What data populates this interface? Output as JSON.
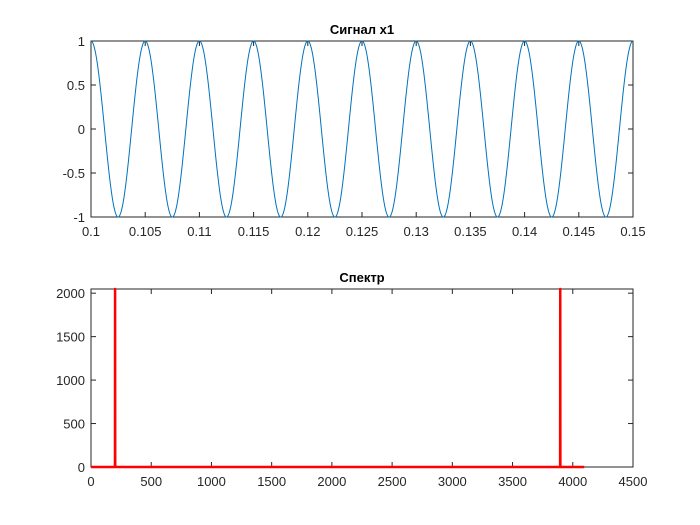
{
  "chart_data": [
    {
      "type": "line",
      "title": "Сигнал x1",
      "xlabel": "",
      "ylabel": "",
      "xlim": [
        0.1,
        0.15
      ],
      "ylim": [
        -1,
        1
      ],
      "xticks": [
        0.1,
        0.105,
        0.11,
        0.115,
        0.12,
        0.125,
        0.13,
        0.135,
        0.14,
        0.145,
        0.15
      ],
      "xtick_labels": [
        "0.1",
        "0.105",
        "0.11",
        "0.115",
        "0.12",
        "0.125",
        "0.13",
        "0.135",
        "0.14",
        "0.145",
        "0.15"
      ],
      "yticks": [
        -1,
        -0.5,
        0,
        0.5,
        1
      ],
      "ytick_labels": [
        "-1",
        "-0.5",
        "0",
        "0.5",
        "1"
      ],
      "grid": false,
      "series": [
        {
          "function": "cos(2*pi*f*t)",
          "frequency_hz": 200,
          "amplitude": 1,
          "color": "#0072BD"
        }
      ]
    },
    {
      "type": "line",
      "title": "Спектр",
      "xlabel": "",
      "ylabel": "",
      "xlim": [
        0,
        4500
      ],
      "ylim": [
        0,
        2048
      ],
      "xticks": [
        0,
        500,
        1000,
        1500,
        2000,
        2500,
        3000,
        3500,
        4000,
        4500
      ],
      "xtick_labels": [
        "0",
        "500",
        "1000",
        "1500",
        "2000",
        "2500",
        "3000",
        "3500",
        "4000",
        "4500"
      ],
      "yticks": [
        0,
        500,
        1000,
        1500,
        2000
      ],
      "ytick_labels": [
        "0",
        "500",
        "1000",
        "1500",
        "2000"
      ],
      "grid": false,
      "series": [
        {
          "color": "#FF0000",
          "x": [
            0,
            199,
            200,
            201,
            3895,
            3896,
            3897,
            4095
          ],
          "y": [
            0,
            0,
            2048,
            0,
            0,
            2048,
            0,
            0
          ]
        }
      ]
    }
  ]
}
